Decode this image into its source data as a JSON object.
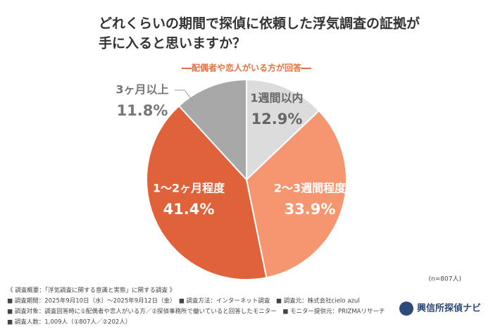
{
  "chart_data": {
    "type": "pie",
    "title": [
      "どれくらいの期間で探偵に依頼した浮気調査の証拠が",
      "手に入ると思いますか？"
    ],
    "subtitle": "配偶者や恋人がいる方が回答",
    "categories": [
      "1週間以内",
      "2〜3週間程度",
      "1〜2ヶ月程度",
      "3ヶ月以上"
    ],
    "values": [
      12.9,
      33.9,
      41.4,
      11.8
    ],
    "value_labels": [
      "12.9%",
      "33.9%",
      "41.4%",
      "11.8%"
    ],
    "colors": [
      "#dcdcdc",
      "#f59670",
      "#e0623b",
      "#a8a8a8"
    ],
    "sample": "(n=807人)",
    "notes": [
      "《 調査概要：「浮気調査に関する意識と実態」に関する調査 》",
      "■ 調査期間：2025年9月10日（水）〜2025年9月12日（金）　■ 調査方法：インターネット調査　■ 調査元：株式会社cielo azul",
      "■ 調査対象：調査回答時に①配偶者や恋人がいる方／②探偵事務所で働いていると回答したモニター　■ モニター提供元：PRIZMAリサーチ",
      "■ 調査人数：1,009人（①807人／②202人）"
    ],
    "logo": "興信所探偵ナビ"
  }
}
